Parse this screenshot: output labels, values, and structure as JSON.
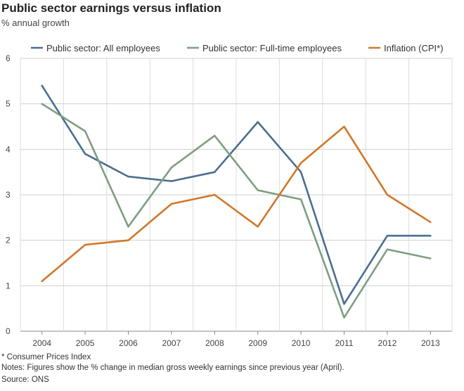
{
  "header": {
    "title": "Public sector earnings versus inflation",
    "subtitle": "% annual growth"
  },
  "footer": {
    "footnote": "* Consumer Prices Index",
    "notes": "Notes: Figures show the % change in median gross weekly earnings since previous year (April).",
    "source": "Source: ONS"
  },
  "chart_data": {
    "type": "line",
    "title": "Public sector earnings versus inflation",
    "subtitle": "% annual growth",
    "xlabel": "",
    "ylabel": "",
    "categories": [
      "2004",
      "2005",
      "2006",
      "2007",
      "2008",
      "2009",
      "2010",
      "2011",
      "2012",
      "2013"
    ],
    "ylim": [
      0,
      6
    ],
    "yticks": [
      0,
      1,
      2,
      3,
      4,
      5,
      6
    ],
    "grid": true,
    "legend_position": "top",
    "series": [
      {
        "name": "Public sector: All employees",
        "color": "#4a6f8f",
        "values": [
          5.4,
          3.9,
          3.4,
          3.3,
          3.5,
          4.6,
          3.5,
          0.6,
          2.1,
          2.1
        ]
      },
      {
        "name": "Public sector: Full-time employees",
        "color": "#7f9e80",
        "values": [
          5.0,
          4.4,
          2.3,
          3.6,
          4.3,
          3.1,
          2.9,
          0.3,
          1.8,
          1.6
        ]
      },
      {
        "name": "Inflation (CPI*)",
        "color": "#d0782a",
        "values": [
          1.1,
          1.9,
          2.0,
          2.8,
          3.0,
          2.3,
          3.7,
          4.5,
          3.0,
          2.4
        ]
      }
    ]
  }
}
